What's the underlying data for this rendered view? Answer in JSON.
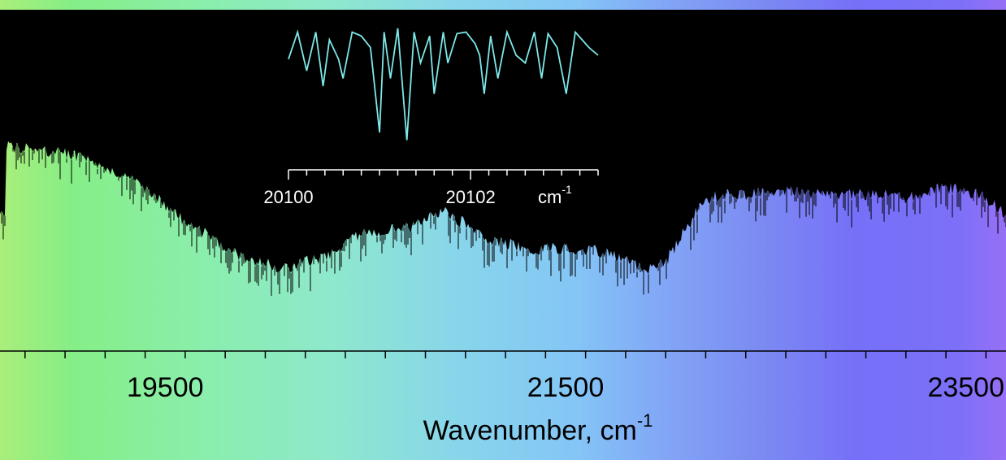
{
  "chart_data": [
    {
      "type": "line",
      "title": "",
      "xlabel": "Wavenumber,  cm",
      "xlabel_superscript": "-1",
      "ylabel": "",
      "xlim": [
        18675,
        23700
      ],
      "x_ticks": [
        19500,
        21500,
        23500
      ],
      "x_tick_labels": [
        "19500",
        "21500",
        "23500"
      ],
      "minor_tick_step": 200,
      "grid": false,
      "legend": "none",
      "background": "visible-spectrum color gradient (green to violet)",
      "series": [
        {
          "color": "#000000",
          "style": "dense absorption spectrum, filled black from top",
          "x": [
            18700,
            19000,
            19300,
            19600,
            19900,
            20100,
            20300,
            20500,
            20700,
            20900,
            21100,
            21300,
            21500,
            21700,
            21900,
            22000,
            22200,
            22400,
            22600,
            22800,
            23000,
            23200,
            23400,
            23600,
            23700
          ],
          "y": [
            0.6,
            0.58,
            0.52,
            0.38,
            0.27,
            0.24,
            0.28,
            0.35,
            0.36,
            0.41,
            0.33,
            0.3,
            0.3,
            0.29,
            0.24,
            0.26,
            0.45,
            0.46,
            0.47,
            0.46,
            0.46,
            0.45,
            0.48,
            0.45,
            0.4
          ]
        }
      ]
    },
    {
      "type": "line",
      "title": "",
      "inset": true,
      "xlabel": "cm",
      "xlabel_superscript": "-1",
      "xlim": [
        20100,
        20103.4
      ],
      "x_ticks": [
        20100,
        20102
      ],
      "x_tick_labels": [
        "20100",
        "20102"
      ],
      "minor_tick_step": 0.2,
      "series": [
        {
          "color": "#7ee8e8",
          "x": [
            20100.0,
            20100.1,
            20100.2,
            20100.3,
            20100.38,
            20100.45,
            20100.55,
            20100.6,
            20100.7,
            20100.8,
            20100.9,
            20101.0,
            20101.05,
            20101.12,
            20101.2,
            20101.3,
            20101.38,
            20101.45,
            20101.55,
            20101.6,
            20101.7,
            20101.75,
            20101.85,
            20101.95,
            20102.05,
            20102.1,
            20102.15,
            20102.22,
            20102.3,
            20102.4,
            20102.5,
            20102.6,
            20102.7,
            20102.78,
            20102.85,
            20102.95,
            20103.05,
            20103.15,
            20103.3,
            20103.4
          ],
          "y": [
            0.55,
            0.9,
            0.4,
            0.9,
            0.2,
            0.8,
            0.55,
            0.3,
            0.9,
            0.85,
            0.7,
            -0.4,
            0.9,
            0.3,
            0.95,
            -0.5,
            0.9,
            0.5,
            0.85,
            0.1,
            0.9,
            0.5,
            0.88,
            0.9,
            0.75,
            0.6,
            0.1,
            0.85,
            0.3,
            0.9,
            0.6,
            0.5,
            0.9,
            0.3,
            0.88,
            0.7,
            0.1,
            0.9,
            0.7,
            0.6
          ]
        }
      ]
    }
  ]
}
